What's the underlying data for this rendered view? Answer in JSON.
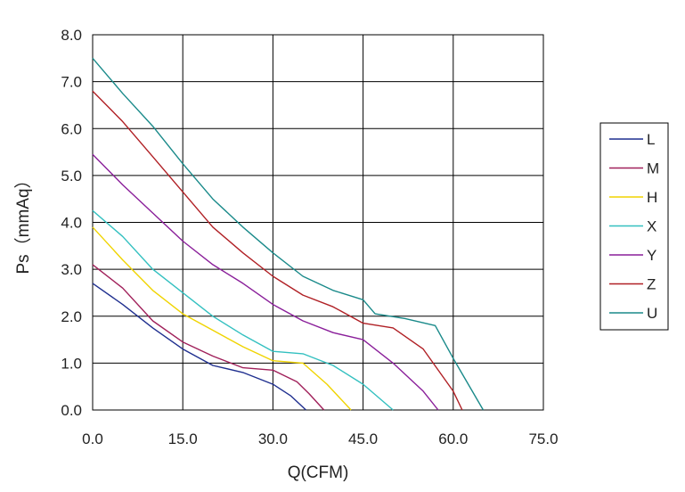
{
  "chart_data": {
    "type": "line",
    "title": "",
    "xlabel": "Q(CFM)",
    "ylabel": "Ps（mmAq）",
    "xlim": [
      0,
      75
    ],
    "ylim": [
      0,
      8
    ],
    "x_ticks": [
      "0.0",
      "15.0",
      "30.0",
      "45.0",
      "60.0",
      "75.0"
    ],
    "y_ticks": [
      "0.0",
      "1.0",
      "2.0",
      "3.0",
      "4.0",
      "5.0",
      "6.0",
      "7.0",
      "8.0"
    ],
    "grid": true,
    "legend_position": "right",
    "series": [
      {
        "name": "L",
        "color": "#1f2f8f",
        "points": [
          [
            0,
            2.7
          ],
          [
            5,
            2.25
          ],
          [
            10,
            1.75
          ],
          [
            15,
            1.3
          ],
          [
            20,
            0.95
          ],
          [
            25,
            0.8
          ],
          [
            30,
            0.55
          ],
          [
            33,
            0.3
          ],
          [
            35.5,
            0
          ]
        ]
      },
      {
        "name": "M",
        "color": "#a0205a",
        "points": [
          [
            0,
            3.1
          ],
          [
            5,
            2.6
          ],
          [
            10,
            1.9
          ],
          [
            15,
            1.45
          ],
          [
            20,
            1.15
          ],
          [
            25,
            0.9
          ],
          [
            30,
            0.85
          ],
          [
            34,
            0.6
          ],
          [
            36,
            0.35
          ],
          [
            38.5,
            0
          ]
        ]
      },
      {
        "name": "H",
        "color": "#f0d400",
        "points": [
          [
            0,
            3.9
          ],
          [
            5,
            3.2
          ],
          [
            10,
            2.55
          ],
          [
            15,
            2.05
          ],
          [
            20,
            1.7
          ],
          [
            25,
            1.35
          ],
          [
            30,
            1.05
          ],
          [
            35,
            1.0
          ],
          [
            39,
            0.55
          ],
          [
            43,
            0
          ]
        ]
      },
      {
        "name": "X",
        "color": "#33c0c0",
        "points": [
          [
            0,
            4.25
          ],
          [
            5,
            3.7
          ],
          [
            10,
            3.0
          ],
          [
            15,
            2.5
          ],
          [
            20,
            2.0
          ],
          [
            25,
            1.6
          ],
          [
            30,
            1.25
          ],
          [
            35,
            1.2
          ],
          [
            40,
            0.95
          ],
          [
            45,
            0.55
          ],
          [
            50,
            0
          ]
        ]
      },
      {
        "name": "Y",
        "color": "#8a1f9a",
        "points": [
          [
            0,
            5.45
          ],
          [
            5,
            4.8
          ],
          [
            10,
            4.2
          ],
          [
            15,
            3.6
          ],
          [
            20,
            3.1
          ],
          [
            25,
            2.7
          ],
          [
            30,
            2.25
          ],
          [
            35,
            1.9
          ],
          [
            40,
            1.65
          ],
          [
            45,
            1.5
          ],
          [
            50,
            1.0
          ],
          [
            55,
            0.4
          ],
          [
            57.5,
            0
          ]
        ]
      },
      {
        "name": "Z",
        "color": "#b02025",
        "points": [
          [
            0,
            6.8
          ],
          [
            5,
            6.15
          ],
          [
            10,
            5.4
          ],
          [
            15,
            4.65
          ],
          [
            20,
            3.9
          ],
          [
            25,
            3.35
          ],
          [
            30,
            2.85
          ],
          [
            35,
            2.45
          ],
          [
            40,
            2.2
          ],
          [
            45,
            1.85
          ],
          [
            50,
            1.75
          ],
          [
            55,
            1.3
          ],
          [
            60,
            0.4
          ],
          [
            61.5,
            0
          ]
        ]
      },
      {
        "name": "U",
        "color": "#1a8a8a",
        "points": [
          [
            0,
            7.5
          ],
          [
            5,
            6.75
          ],
          [
            10,
            6.05
          ],
          [
            15,
            5.25
          ],
          [
            20,
            4.5
          ],
          [
            25,
            3.9
          ],
          [
            30,
            3.35
          ],
          [
            35,
            2.85
          ],
          [
            40,
            2.55
          ],
          [
            45,
            2.35
          ],
          [
            47,
            2.05
          ],
          [
            52,
            1.95
          ],
          [
            57,
            1.8
          ],
          [
            60,
            1.1
          ],
          [
            65,
            0
          ]
        ]
      }
    ]
  }
}
